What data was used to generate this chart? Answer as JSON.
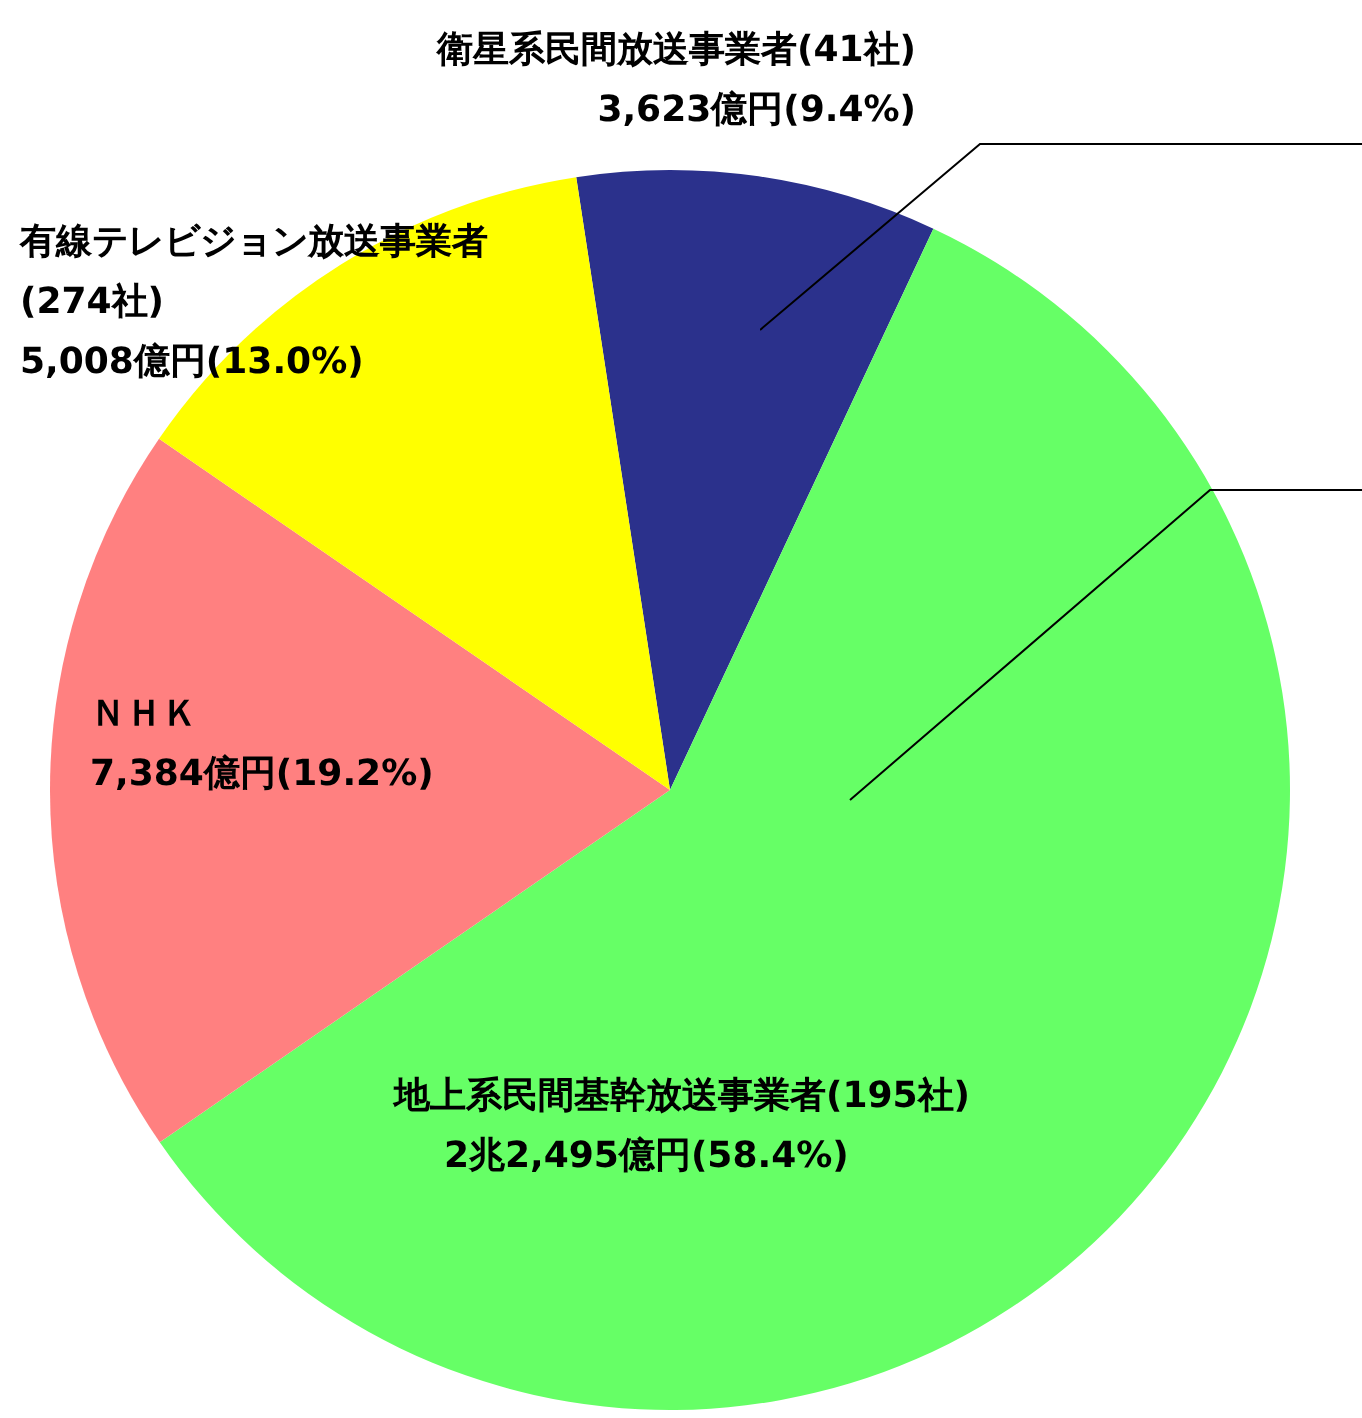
{
  "chart_data": {
    "type": "pie",
    "categories": [
      "衛星系民間放送事業者(41社)",
      "地上系民間基幹放送事業者(195社)",
      "ＮＨＫ",
      "有線テレビジョン放送事業者(274社)"
    ],
    "values": [
      9.4,
      58.4,
      19.2,
      13.0
    ],
    "colors": [
      "#2b318c",
      "#66ff66",
      "#ff8080",
      "#ffff00"
    ],
    "value_labels": [
      "3,623億円(9.4%)",
      "2兆2,495億円(58.4%)",
      "7,384億円(19.2%)",
      "5,008億円(13.0%)"
    ]
  }
}
